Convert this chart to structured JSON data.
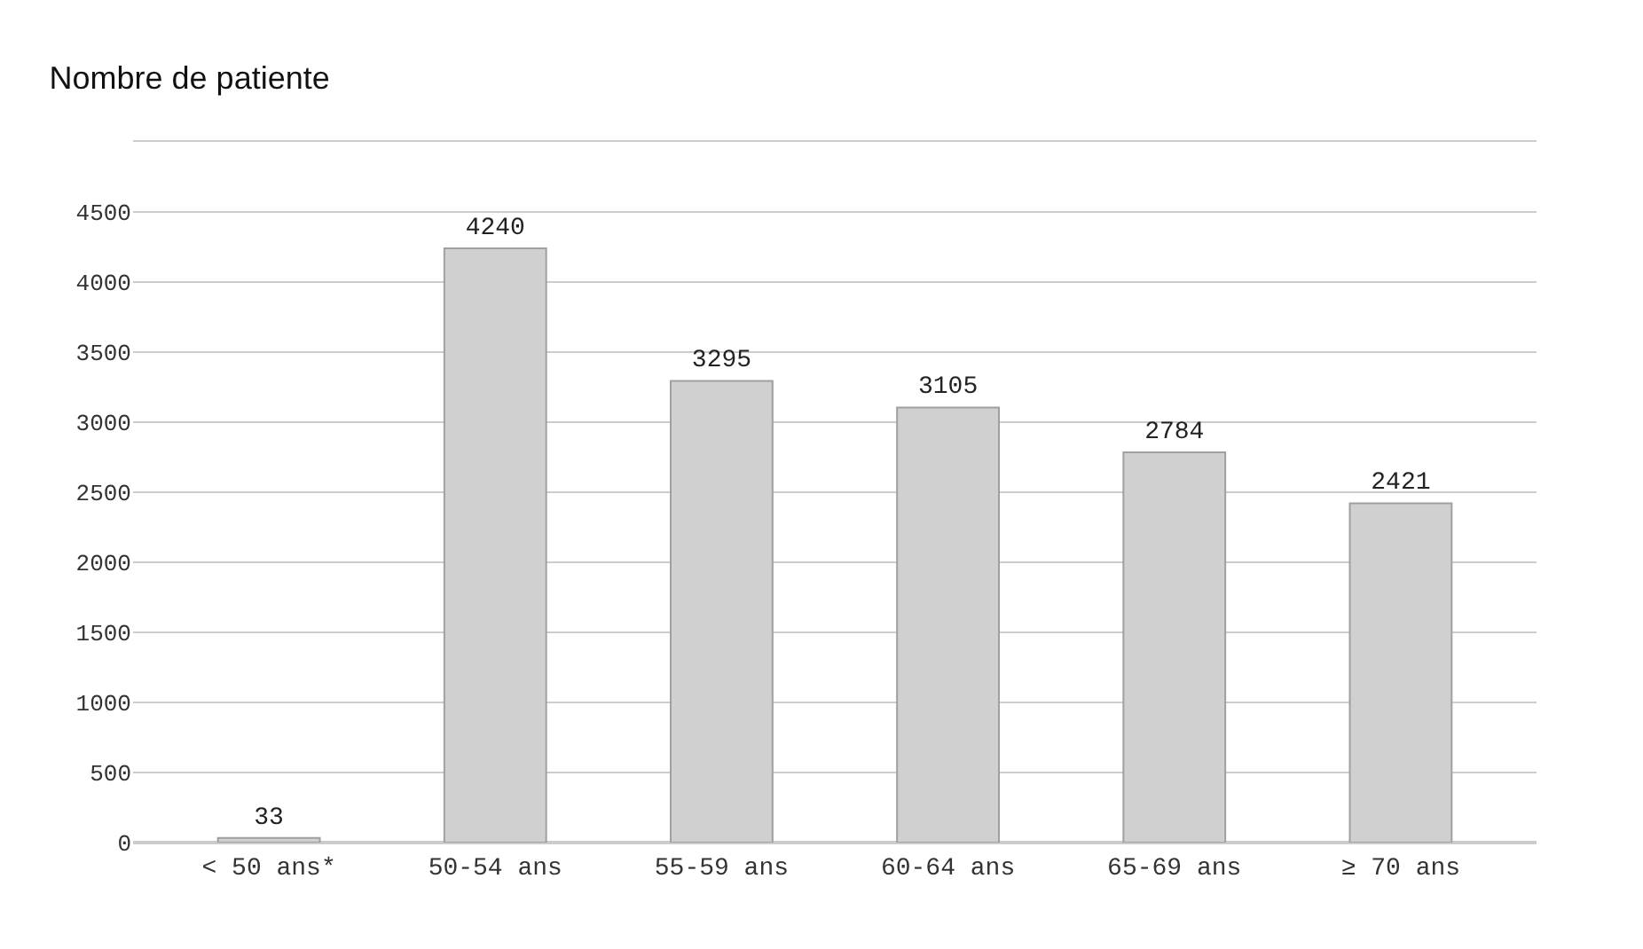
{
  "chart_data": {
    "type": "bar",
    "title": "Nombre de patiente",
    "categories": [
      "< 50 ans*",
      "50-54 ans",
      "55-59 ans",
      "60-64 ans",
      "65-69 ans",
      "≥ 70 ans"
    ],
    "values": [
      33,
      4240,
      3295,
      3105,
      2784,
      2421
    ],
    "color": "#d0d0d0",
    "ylim": [
      0,
      5000
    ],
    "yticks": [
      0,
      500,
      1000,
      1500,
      2000,
      2500,
      3000,
      3500,
      4000,
      4500,
      {
        "value": 5000,
        "label": null
      }
    ],
    "grid": "y",
    "data_labels": true
  }
}
